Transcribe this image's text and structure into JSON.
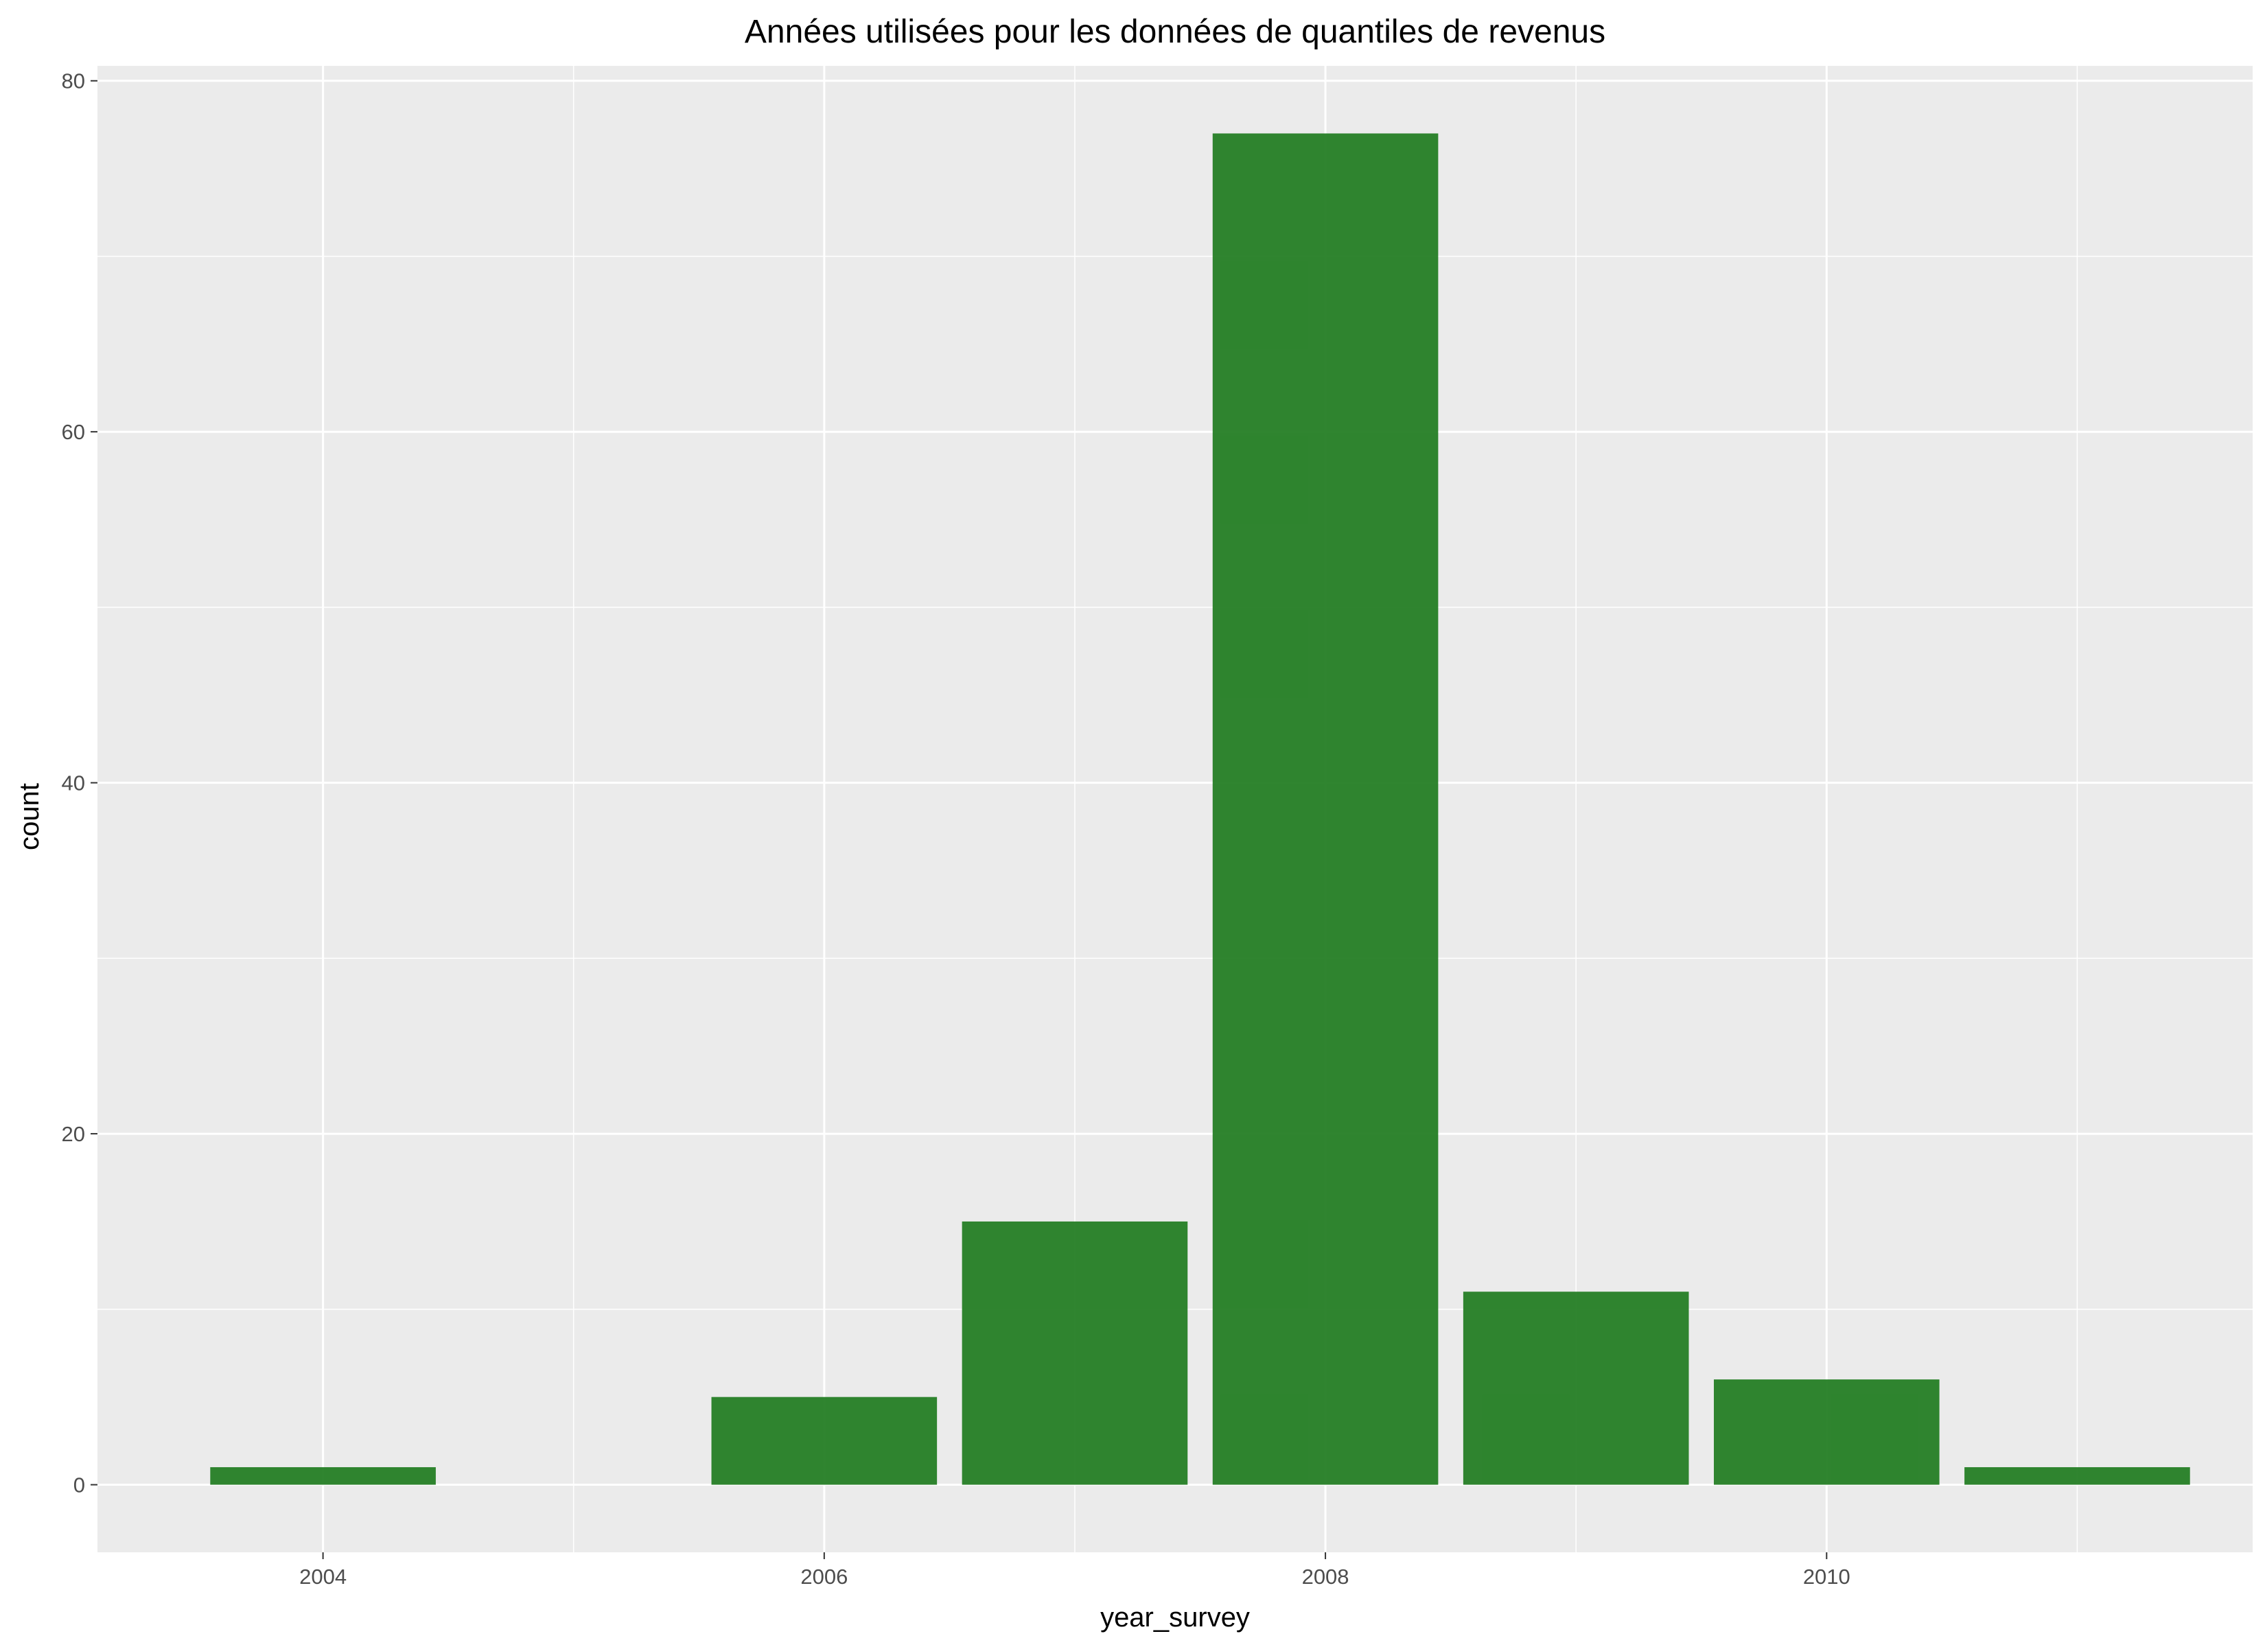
{
  "chart_data": {
    "type": "bar",
    "title": "Années utilisées pour les données de quantiles de revenus",
    "xlabel": "year_survey",
    "ylabel": "count",
    "x": [
      2004,
      2005,
      2006,
      2007,
      2008,
      2009,
      2010,
      2011
    ],
    "values": [
      1,
      0,
      5,
      15,
      77,
      11,
      6,
      1
    ],
    "xlim": [
      2003.1,
      2011.7
    ],
    "ylim": [
      -3.85,
      80.85
    ],
    "xticks": [
      2004,
      2006,
      2008,
      2010
    ],
    "xtick_labels": [
      "2004",
      "2006",
      "2008",
      "2010"
    ],
    "yticks": [
      0,
      20,
      40,
      60,
      80
    ],
    "ytick_labels": [
      "0",
      "20",
      "40",
      "60",
      "80"
    ],
    "bar_color": "#1e7b1e",
    "panel_background": "#ebebeb",
    "grid_color": "#ffffff",
    "grid": true,
    "legend": "none"
  }
}
